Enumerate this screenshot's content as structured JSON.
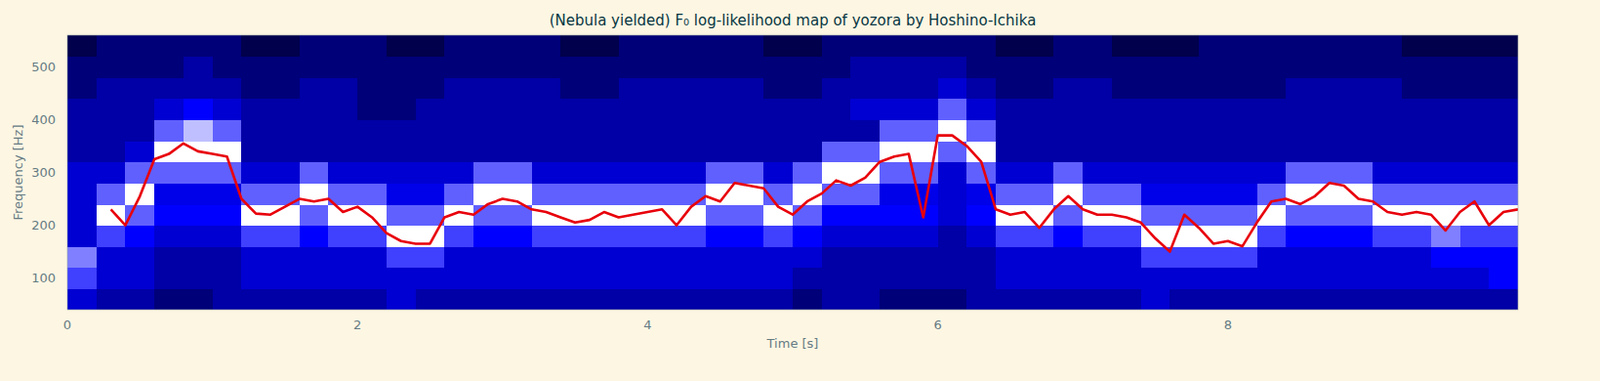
{
  "chart_data": {
    "type": "heatmap",
    "title": "(Nebula yielded) F₀ log-likelihood map of yozora by Hoshino-Ichika",
    "x_label": "Time [s]",
    "y_label": "Frequency [Hz]",
    "xlim": [
      0,
      10
    ],
    "ylim": [
      40,
      560
    ],
    "xticks": [
      0,
      2,
      4,
      6,
      8
    ],
    "yticks": [
      100,
      200,
      300,
      400,
      500
    ],
    "grid": false,
    "x_bins": [
      0,
      0.2,
      0.4,
      0.6,
      0.8,
      1,
      1.2,
      1.4,
      1.6,
      1.8,
      2,
      2.2,
      2.4,
      2.6,
      2.8,
      3,
      3.2,
      3.4,
      3.6,
      3.8,
      4,
      4.2,
      4.4,
      4.6,
      4.8,
      5,
      5.2,
      5.4,
      5.6,
      5.8,
      6,
      6.2,
      6.4,
      6.6,
      6.8,
      7,
      7.2,
      7.4,
      7.6,
      7.8,
      8,
      8.2,
      8.4,
      8.6,
      8.8,
      9,
      9.2,
      9.4,
      9.6,
      9.8,
      10
    ],
    "y_bins": [
      40,
      80,
      120,
      160,
      200,
      240,
      280,
      320,
      360,
      400,
      440,
      480,
      520,
      560
    ],
    "cells": [
      [
        -7,
        -8,
        -8,
        -9,
        -9,
        -8,
        -8,
        -8,
        -8,
        -8,
        -8,
        -7,
        -8,
        -8,
        -8,
        -8,
        -8,
        -8,
        -8,
        -8,
        -8,
        -8,
        -8,
        -8,
        -8,
        -9,
        -8,
        -8,
        -9,
        -9,
        -9,
        -8,
        -8,
        -8,
        -8,
        -8,
        -8,
        -7,
        -8,
        -8,
        -8,
        -8,
        -8,
        -8,
        -8,
        -8,
        -8,
        -8,
        -8,
        -8
      ],
      [
        -5,
        -7,
        -7,
        -8,
        -8,
        -8,
        -7,
        -7,
        -7,
        -7,
        -7,
        -7,
        -7,
        -7,
        -7,
        -7,
        -7,
        -7,
        -7,
        -7,
        -7,
        -7,
        -7,
        -7,
        -7,
        -8,
        -8,
        -8,
        -8,
        -8,
        -8,
        -8,
        -7,
        -7,
        -7,
        -7,
        -7,
        -7,
        -7,
        -7,
        -7,
        -7,
        -7,
        -7,
        -7,
        -7,
        -7,
        -7,
        -7,
        -6
      ],
      [
        -4,
        -7,
        -7,
        -8,
        -8,
        -8,
        -7,
        -7,
        -7,
        -7,
        -7,
        -5,
        -5,
        -7,
        -7,
        -7,
        -7,
        -7,
        -7,
        -7,
        -7,
        -7,
        -7,
        -7,
        -7,
        -7,
        -8,
        -8,
        -8,
        -8,
        -8,
        -8,
        -7,
        -7,
        -7,
        -7,
        -7,
        -5,
        -5,
        -5,
        -5,
        -7,
        -7,
        -7,
        -7,
        -7,
        -7,
        -6,
        -6,
        -6
      ],
      [
        -7,
        -5,
        -6,
        -7,
        -7,
        -7,
        -5,
        -5,
        -6,
        -5,
        -5,
        -2,
        -2,
        -5,
        -6,
        -6,
        -5,
        -5,
        -5,
        -5,
        -5,
        -5,
        -6,
        -6,
        -5,
        -6,
        -7,
        -7,
        -7,
        -7,
        -8,
        -7,
        -5,
        -5,
        -6,
        -5,
        -5,
        -2,
        -2,
        -2,
        -2,
        -5,
        -6,
        -6,
        -6,
        -5,
        -5,
        -4,
        -5,
        -5
      ],
      [
        -7,
        -2,
        -4.5,
        -6,
        -6,
        -6,
        -2,
        -2,
        -4.5,
        -2,
        -2,
        -4.5,
        -4.5,
        -2,
        -4.5,
        -4.5,
        -2,
        -2,
        -2,
        -2,
        -2,
        -2,
        -4.5,
        -4.5,
        -2,
        -4.5,
        -6,
        -6,
        -6,
        -6,
        -7,
        -6,
        -2,
        -2,
        -4.5,
        -2,
        -2,
        -4.5,
        -4.5,
        -4.5,
        -4.5,
        -2,
        -4.5,
        -4.5,
        -4.5,
        -2,
        -2,
        -2,
        -2,
        -2
      ],
      [
        -7,
        -4.5,
        -2,
        -6.5,
        -6.5,
        -6.5,
        -4.5,
        -4.5,
        -2,
        -4.5,
        -4.5,
        -6.5,
        -6.5,
        -4.5,
        -2,
        -2,
        -4.5,
        -4.5,
        -4.5,
        -4.5,
        -4.5,
        -4.5,
        -2,
        -2,
        -4.5,
        -2,
        -4.5,
        -4.5,
        -6.5,
        -6.5,
        -7,
        -6.5,
        -4.5,
        -4.5,
        -2,
        -4.5,
        -4.5,
        -6.5,
        -6.5,
        -6.5,
        -6.5,
        -4.5,
        -2,
        -2,
        -2,
        -4.5,
        -4.5,
        -4.5,
        -4.5,
        -4.5
      ],
      [
        -7,
        -7,
        -4.5,
        -4.5,
        -4.5,
        -4.5,
        -7,
        -7,
        -4.5,
        -7,
        -7,
        -7,
        -7,
        -7,
        -4.5,
        -4.5,
        -7,
        -7,
        -7,
        -7,
        -7,
        -7,
        -4.5,
        -4.5,
        -7,
        -4.5,
        -2,
        -2,
        -4.5,
        -4.5,
        -7,
        -4.5,
        -7,
        -7,
        -4.5,
        -7,
        -7,
        -7,
        -7,
        -7,
        -7,
        -7,
        -4.5,
        -4.5,
        -4.5,
        -7,
        -7,
        -7,
        -7,
        -7
      ],
      [
        -8,
        -8,
        -7,
        -2,
        -2,
        -2,
        -8,
        -8,
        -8,
        -8,
        -8,
        -8,
        -8,
        -8,
        -8,
        -8,
        -8,
        -8,
        -8,
        -8,
        -8,
        -8,
        -8,
        -8,
        -8,
        -8,
        -4.5,
        -4.5,
        -2,
        -2,
        -4.5,
        -2,
        -8,
        -8,
        -8,
        -8,
        -8,
        -8,
        -8,
        -8,
        -8,
        -8,
        -8,
        -8,
        -8,
        -8,
        -8,
        -8,
        -8,
        -8
      ],
      [
        -8,
        -8,
        -8,
        -4.5,
        -3,
        -4.5,
        -8,
        -8,
        -8,
        -8,
        -8,
        -8,
        -8,
        -8,
        -8,
        -8,
        -8,
        -8,
        -8,
        -8,
        -8,
        -8,
        -8,
        -8,
        -8,
        -8,
        -8,
        -8,
        -4.5,
        -4.5,
        -2,
        -4.5,
        -8,
        -8,
        -8,
        -8,
        -8,
        -8,
        -8,
        -8,
        -8,
        -8,
        -8,
        -8,
        -8,
        -8,
        -8,
        -8,
        -8,
        -8
      ],
      [
        -8,
        -8,
        -8,
        -7,
        -6,
        -7,
        -8,
        -8,
        -8,
        -8,
        -9,
        -9,
        -8,
        -8,
        -8,
        -8,
        -8,
        -8,
        -8,
        -8,
        -8,
        -8,
        -8,
        -8,
        -8,
        -8,
        -8,
        -7,
        -7,
        -7,
        -4.5,
        -7,
        -8,
        -8,
        -8,
        -8,
        -8,
        -8,
        -8,
        -8,
        -8,
        -8,
        -8,
        -8,
        -8,
        -8,
        -8,
        -8,
        -8,
        -8
      ],
      [
        -9,
        -8,
        -8,
        -8,
        -8,
        -8,
        -9,
        -9,
        -8,
        -8,
        -9,
        -9,
        -9,
        -8,
        -8,
        -8,
        -8,
        -9,
        -9,
        -8,
        -8,
        -8,
        -8,
        -8,
        -9,
        -9,
        -8,
        -8,
        -8,
        -8,
        -7,
        -8,
        -9,
        -9,
        -8,
        -8,
        -9,
        -9,
        -9,
        -9,
        -9,
        -9,
        -8,
        -8,
        -8,
        -8,
        -9,
        -9,
        -9,
        -9
      ],
      [
        -9,
        -9,
        -9,
        -9,
        -8,
        -9,
        -9,
        -9,
        -9,
        -9,
        -9,
        -9,
        -9,
        -9,
        -9,
        -9,
        -9,
        -9,
        -9,
        -9,
        -9,
        -9,
        -9,
        -9,
        -9,
        -9,
        -9,
        -8,
        -8,
        -8,
        -8,
        -9,
        -9,
        -9,
        -9,
        -9,
        -9,
        -9,
        -9,
        -9,
        -9,
        -9,
        -9,
        -9,
        -9,
        -9,
        -9,
        -9,
        -9,
        -9
      ],
      [
        -10,
        -9,
        -9,
        -9,
        -9,
        -9,
        -10,
        -10,
        -9,
        -9,
        -9,
        -10,
        -10,
        -9,
        -9,
        -9,
        -9,
        -10,
        -10,
        -9,
        -9,
        -9,
        -9,
        -9,
        -10,
        -10,
        -9,
        -9,
        -9,
        -9,
        -9,
        -9,
        -10,
        -10,
        -9,
        -9,
        -10,
        -10,
        -10,
        -9,
        -9,
        -9,
        -9,
        -9,
        -9,
        -9,
        -10,
        -10,
        -10,
        -10
      ]
    ],
    "color_range": [
      -10,
      0
    ],
    "x": [
      0,
      0.1,
      0.2,
      0.3,
      0.4,
      0.5,
      0.6,
      0.7,
      0.8,
      0.9,
      1,
      1.1,
      1.2,
      1.3,
      1.4,
      1.5,
      1.6,
      1.7,
      1.8,
      1.9,
      2,
      2.1,
      2.2,
      2.3,
      2.4,
      2.5,
      2.6,
      2.7,
      2.8,
      2.9,
      3,
      3.1,
      3.2,
      3.3,
      3.4,
      3.5,
      3.6,
      3.7,
      3.8,
      3.9,
      4,
      4.1,
      4.2,
      4.3,
      4.4,
      4.5,
      4.6,
      4.7,
      4.8,
      4.9,
      5,
      5.1,
      5.2,
      5.3,
      5.4,
      5.5,
      5.6,
      5.7,
      5.8,
      5.9,
      6,
      6.1,
      6.2,
      6.3,
      6.4,
      6.5,
      6.6,
      6.7,
      6.8,
      6.9,
      7,
      7.1,
      7.2,
      7.3,
      7.4,
      7.5,
      7.6,
      7.7,
      7.8,
      7.9,
      8,
      8.1,
      8.2,
      8.3,
      8.4,
      8.5,
      8.6,
      8.7,
      8.8,
      8.9,
      9,
      9.1,
      9.2,
      9.3,
      9.4,
      9.5,
      9.6,
      9.7,
      9.8,
      9.9,
      10
    ],
    "values": [
      null,
      null,
      null,
      230,
      200,
      255,
      325,
      335,
      355,
      340,
      335,
      330,
      250,
      222,
      220,
      235,
      250,
      245,
      250,
      225,
      235,
      215,
      185,
      170,
      165,
      165,
      215,
      225,
      220,
      240,
      250,
      245,
      230,
      225,
      215,
      205,
      210,
      225,
      215,
      220,
      225,
      230,
      200,
      235,
      255,
      245,
      280,
      275,
      270,
      235,
      220,
      245,
      260,
      285,
      275,
      290,
      320,
      330,
      335,
      215,
      370,
      370,
      350,
      320,
      230,
      220,
      225,
      195,
      230,
      255,
      230,
      220,
      220,
      215,
      205,
      175,
      150,
      220,
      195,
      165,
      170,
      160,
      205,
      245,
      250,
      240,
      255,
      280,
      275,
      250,
      245,
      225,
      220,
      225,
      220,
      190,
      225,
      245,
      200,
      225,
      230
    ],
    "color": "#e8000b"
  }
}
